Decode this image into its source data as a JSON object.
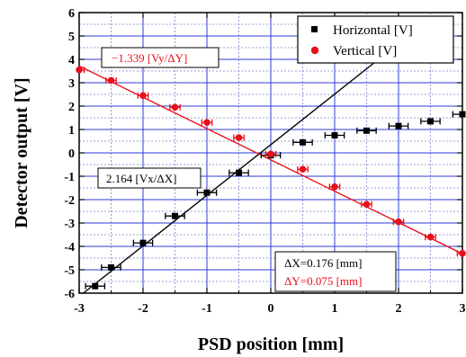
{
  "chart_data": {
    "type": "scatter",
    "xlabel": "PSD position [mm]",
    "ylabel": "Detector output [V]",
    "xlim": [
      -3,
      3
    ],
    "ylim": [
      -6,
      6
    ],
    "x_ticks": [
      "-3",
      "-2",
      "-1",
      "0",
      "1",
      "2",
      "3"
    ],
    "y_ticks": [
      "-6",
      "-5",
      "-4",
      "-3",
      "-2",
      "-1",
      "0",
      "1",
      "2",
      "3",
      "4",
      "5",
      "6"
    ],
    "grid": true,
    "legend_position": "top-right",
    "series": [
      {
        "name": "Horizontal [V]",
        "marker": "square",
        "color": "#000000",
        "x": [
          -2.75,
          -2.5,
          -2.0,
          -1.5,
          -1.0,
          -0.5,
          0.0,
          0.5,
          1.0,
          1.5,
          2.0,
          2.5,
          3.0
        ],
        "y": [
          -5.7,
          -4.9,
          -3.85,
          -2.7,
          -1.7,
          -0.85,
          -0.1,
          0.45,
          0.75,
          0.95,
          1.15,
          1.35,
          1.65
        ],
        "x_error": 0.15
      },
      {
        "name": "Vertical [V]",
        "marker": "circle",
        "color": "#e8101a",
        "x": [
          -3.0,
          -2.5,
          -2.0,
          -1.5,
          -1.0,
          -0.5,
          0.0,
          0.5,
          1.0,
          1.5,
          2.0,
          2.5,
          3.0
        ],
        "y": [
          3.55,
          3.1,
          2.45,
          1.95,
          1.3,
          0.65,
          -0.05,
          -0.7,
          -1.45,
          -2.2,
          -2.95,
          -3.6,
          -4.3
        ],
        "x_error": 0.08
      }
    ],
    "fit_lines": [
      {
        "label": "2.164 [Vx/ΔX]",
        "slope": 2.164,
        "intercept": 0.35,
        "x_range": [
          -2.95,
          1.7
        ],
        "color": "#000000"
      },
      {
        "label": "−1.339 [Vy/ΔY]",
        "slope": -1.339,
        "intercept": -0.3,
        "x_range": [
          -3.0,
          3.0
        ],
        "color": "#e8101a"
      }
    ],
    "annotations": {
      "dx": "ΔX=0.176 [mm]",
      "dy": "ΔY=0.075 [mm]"
    }
  }
}
